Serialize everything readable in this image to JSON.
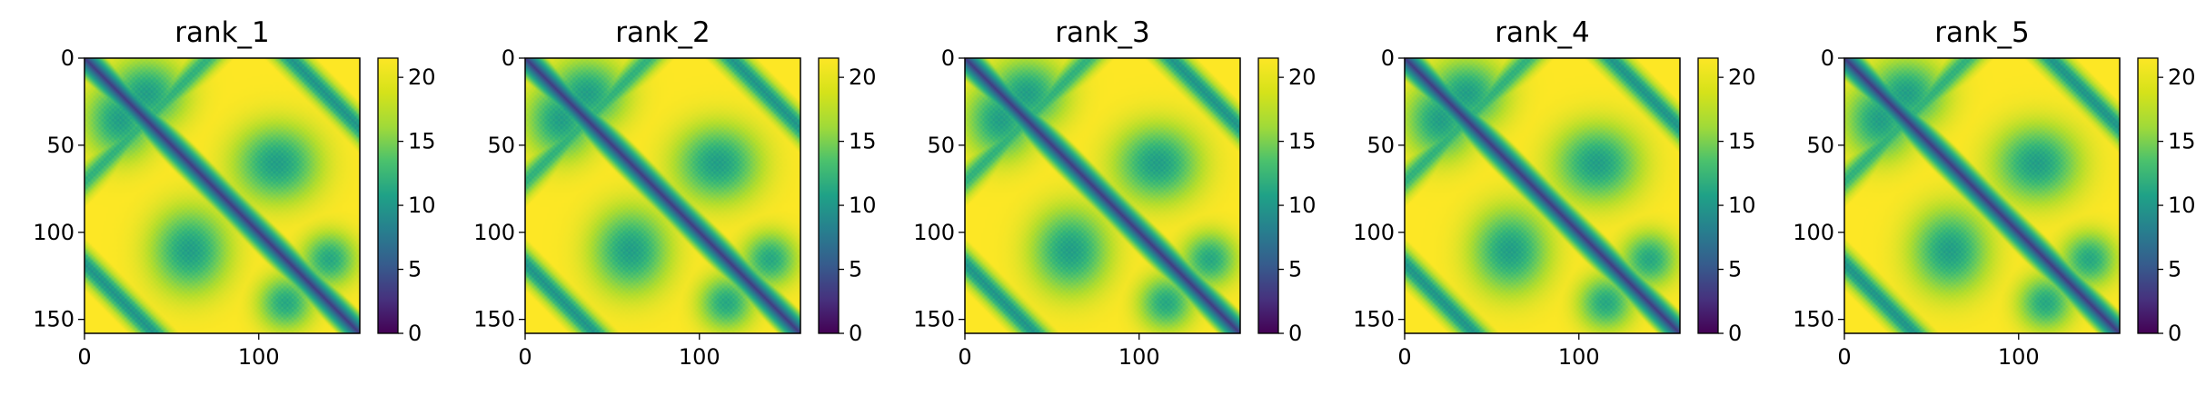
{
  "chart_data": [
    {
      "type": "heatmap",
      "title": "rank_1",
      "x_ticks": [
        "0",
        "100"
      ],
      "y_ticks": [
        "0",
        "50",
        "100",
        "150"
      ],
      "xlim": [
        0,
        158
      ],
      "ylim": [
        158,
        0
      ],
      "n_residues": 158,
      "colorbar": {
        "min": 0,
        "max": 21.5,
        "ticks": [
          "0",
          "5",
          "10",
          "15",
          "20"
        ]
      },
      "colormap": "viridis"
    },
    {
      "type": "heatmap",
      "title": "rank_2",
      "x_ticks": [
        "0",
        "100"
      ],
      "y_ticks": [
        "0",
        "50",
        "100",
        "150"
      ],
      "xlim": [
        0,
        158
      ],
      "ylim": [
        158,
        0
      ],
      "n_residues": 158,
      "colorbar": {
        "min": 0,
        "max": 21.5,
        "ticks": [
          "0",
          "5",
          "10",
          "15",
          "20"
        ]
      },
      "colormap": "viridis"
    },
    {
      "type": "heatmap",
      "title": "rank_3",
      "x_ticks": [
        "0",
        "100"
      ],
      "y_ticks": [
        "0",
        "50",
        "100",
        "150"
      ],
      "xlim": [
        0,
        158
      ],
      "ylim": [
        158,
        0
      ],
      "n_residues": 158,
      "colorbar": {
        "min": 0,
        "max": 21.5,
        "ticks": [
          "0",
          "5",
          "10",
          "15",
          "20"
        ]
      },
      "colormap": "viridis"
    },
    {
      "type": "heatmap",
      "title": "rank_4",
      "x_ticks": [
        "0",
        "100"
      ],
      "y_ticks": [
        "0",
        "50",
        "100",
        "150"
      ],
      "xlim": [
        0,
        158
      ],
      "ylim": [
        158,
        0
      ],
      "n_residues": 158,
      "colorbar": {
        "min": 0,
        "max": 21.5,
        "ticks": [
          "0",
          "5",
          "10",
          "15",
          "20"
        ]
      },
      "colormap": "viridis"
    },
    {
      "type": "heatmap",
      "title": "rank_5",
      "x_ticks": [
        "0",
        "100"
      ],
      "y_ticks": [
        "0",
        "50",
        "100",
        "150"
      ],
      "xlim": [
        0,
        158
      ],
      "ylim": [
        158,
        0
      ],
      "n_residues": 158,
      "colorbar": {
        "min": 0,
        "max": 21.5,
        "ticks": [
          "0",
          "5",
          "10",
          "15",
          "20"
        ]
      },
      "colormap": "viridis"
    }
  ],
  "colors": {
    "viridis_low": "#440154",
    "viridis_mid": "#21918c",
    "viridis_high": "#fde725"
  }
}
